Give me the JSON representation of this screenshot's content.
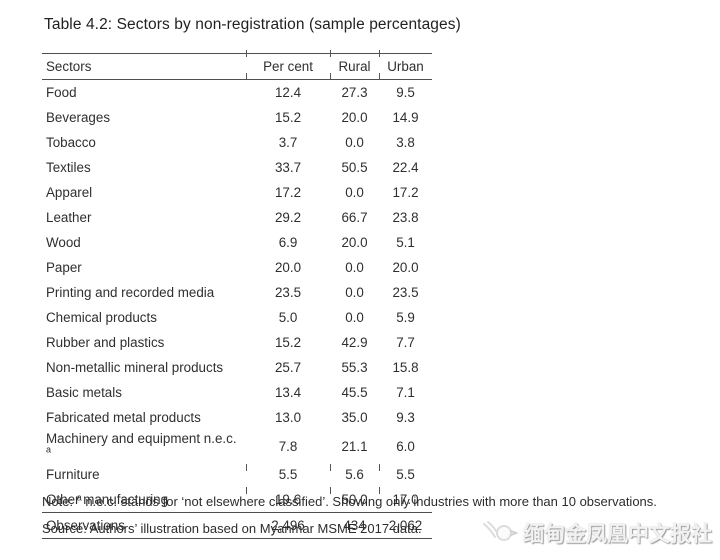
{
  "title": "Table 4.2: Sectors by non-registration (sample percentages)",
  "table": {
    "columns": [
      "Sectors",
      "Per cent",
      "Rural",
      "Urban"
    ],
    "rows": [
      {
        "sector": "Food",
        "per_cent": "12.4",
        "rural": "27.3",
        "urban": "9.5"
      },
      {
        "sector": "Beverages",
        "per_cent": "15.2",
        "rural": "20.0",
        "urban": "14.9"
      },
      {
        "sector": "Tobacco",
        "per_cent": "3.7",
        "rural": "0.0",
        "urban": "3.8"
      },
      {
        "sector": "Textiles",
        "per_cent": "33.7",
        "rural": "50.5",
        "urban": "22.4"
      },
      {
        "sector": "Apparel",
        "per_cent": "17.2",
        "rural": "0.0",
        "urban": "17.2"
      },
      {
        "sector": "Leather",
        "per_cent": "29.2",
        "rural": "66.7",
        "urban": "23.8"
      },
      {
        "sector": "Wood",
        "per_cent": "6.9",
        "rural": "20.0",
        "urban": "5.1"
      },
      {
        "sector": "Paper",
        "per_cent": "20.0",
        "rural": "0.0",
        "urban": "20.0"
      },
      {
        "sector": "Printing and recorded media",
        "per_cent": "23.5",
        "rural": "0.0",
        "urban": "23.5"
      },
      {
        "sector": "Chemical products",
        "per_cent": "5.0",
        "rural": "0.0",
        "urban": "5.9"
      },
      {
        "sector": "Rubber and plastics",
        "per_cent": "15.2",
        "rural": "42.9",
        "urban": "7.7"
      },
      {
        "sector": "Non-metallic mineral products",
        "per_cent": "25.7",
        "rural": "55.3",
        "urban": "15.8"
      },
      {
        "sector": "Basic metals",
        "per_cent": "13.4",
        "rural": "45.5",
        "urban": "7.1"
      },
      {
        "sector": "Fabricated metal products",
        "per_cent": "13.0",
        "rural": "35.0",
        "urban": "9.3"
      },
      {
        "sector": "Machinery and equipment n.e.c.",
        "sup": "a",
        "per_cent": "7.8",
        "rural": "21.1",
        "urban": "6.0"
      },
      {
        "sector": "Furniture",
        "per_cent": "5.5",
        "rural": "5.6",
        "urban": "5.5"
      },
      {
        "sector": "Other manufacturing",
        "per_cent": "19.6",
        "rural": "50.0",
        "urban": "17.0"
      }
    ],
    "footer": {
      "label": "Observations",
      "per_cent": "2,496",
      "rural": "434",
      "urban": "2,062"
    }
  },
  "note": {
    "label": "Note: ",
    "superscript": "a",
    "text": " n.e.c. stands for ‘not elsewhere classified’. Showing only industries with more than 10 observations."
  },
  "source": "Source: Authors’ illustration based on Myanmar MSME 2017 data.",
  "watermark": {
    "icon": "phoenix-icon",
    "text": "缅甸金凤凰中文报社"
  },
  "colors": {
    "background": "#ffffff",
    "text": "#2f2f2f",
    "rule": "#4f4f4f",
    "watermark": "#f2f2f2"
  }
}
